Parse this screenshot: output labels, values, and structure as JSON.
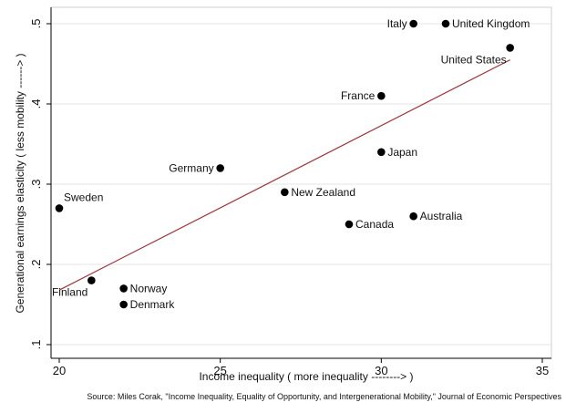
{
  "chart_data": {
    "type": "scatter",
    "title": "",
    "xlabel": "Income inequality ( more inequality -------->  )",
    "ylabel": "Generational earnings elasticity ( less mobility ------> )",
    "xlim": [
      20,
      35
    ],
    "ylim": [
      0.1,
      0.5
    ],
    "xticks": [
      "20",
      "25",
      "30",
      "35"
    ],
    "yticks": [
      ".1",
      ".2",
      ".3",
      ".4",
      ".5"
    ],
    "grid": "horizontal",
    "legend": "none",
    "points": [
      {
        "label": "Italy",
        "x": 31,
        "y": 0.5,
        "label_pos": "left"
      },
      {
        "label": "United Kingdom",
        "x": 32,
        "y": 0.5,
        "label_pos": "right"
      },
      {
        "label": "United States",
        "x": 34,
        "y": 0.47,
        "label_pos": "below-left"
      },
      {
        "label": "France",
        "x": 30,
        "y": 0.41,
        "label_pos": "left"
      },
      {
        "label": "Japan",
        "x": 30,
        "y": 0.34,
        "label_pos": "right"
      },
      {
        "label": "Germany",
        "x": 25,
        "y": 0.32,
        "label_pos": "left"
      },
      {
        "label": "New Zealand",
        "x": 27,
        "y": 0.29,
        "label_pos": "right"
      },
      {
        "label": "Sweden",
        "x": 20,
        "y": 0.27,
        "label_pos": "above-right"
      },
      {
        "label": "Australia",
        "x": 31,
        "y": 0.26,
        "label_pos": "right"
      },
      {
        "label": "Canada",
        "x": 29,
        "y": 0.25,
        "label_pos": "right"
      },
      {
        "label": "Finland",
        "x": 21,
        "y": 0.18,
        "label_pos": "below-left"
      },
      {
        "label": "Norway",
        "x": 22,
        "y": 0.17,
        "label_pos": "right"
      },
      {
        "label": "Denmark",
        "x": 22,
        "y": 0.15,
        "label_pos": "right"
      }
    ],
    "fit_line": {
      "x": [
        20,
        34
      ],
      "y": [
        0.168,
        0.455
      ]
    },
    "colors": {
      "points": "#000000",
      "fit_line": "#a0343a",
      "grid": "#e4e4e4",
      "axis": "#000000"
    },
    "note": "Source:  Miles Corak, \"Income Inequality, Equality of Opportunity, and Intergenerational Mobility,\" Journal of Economic Perspectives"
  }
}
